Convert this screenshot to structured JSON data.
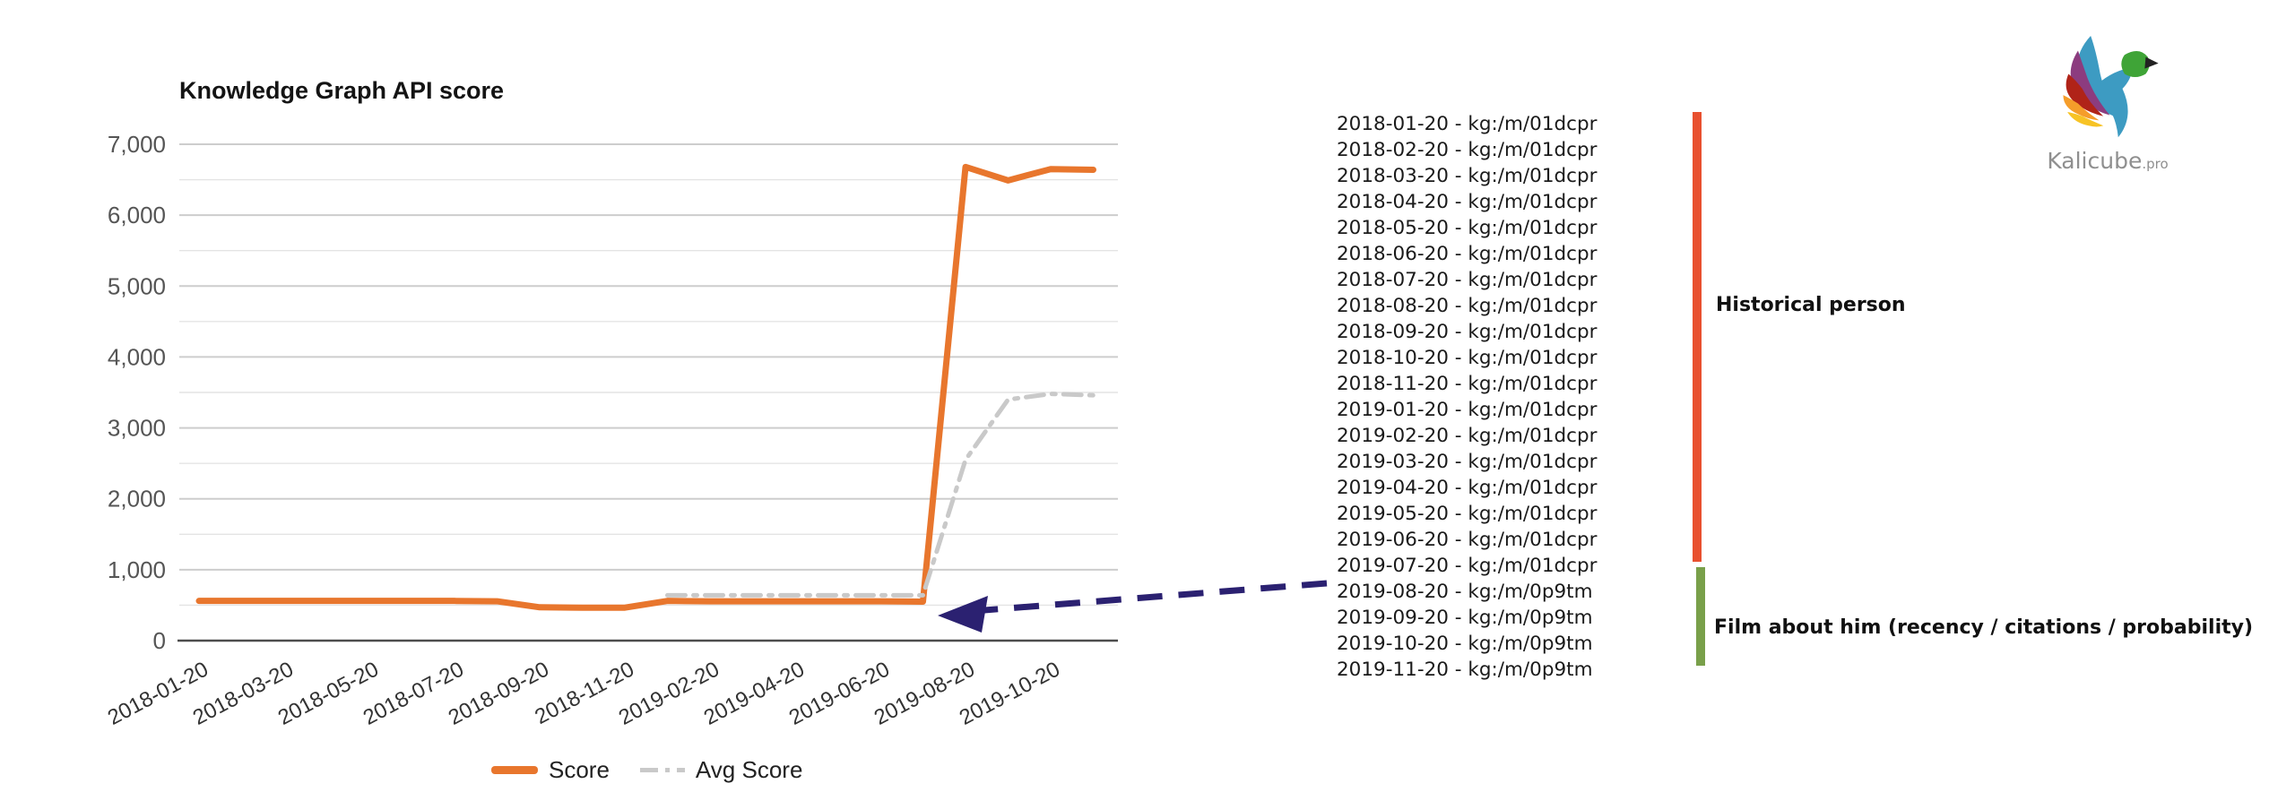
{
  "page": {
    "background": "#ffffff"
  },
  "logo": {
    "name": "Kalicube",
    "tld": ".pro"
  },
  "chart_data": {
    "type": "line",
    "title": "Knowledge Graph API score",
    "x": [
      "2018-01-20",
      "2018-02-20",
      "2018-03-20",
      "2018-04-20",
      "2018-05-20",
      "2018-06-20",
      "2018-07-20",
      "2018-08-20",
      "2018-09-20",
      "2018-10-20",
      "2018-11-20",
      "2019-01-20",
      "2019-02-20",
      "2019-03-20",
      "2019-04-20",
      "2019-05-20",
      "2019-06-20",
      "2019-07-20",
      "2019-08-20",
      "2019-09-20",
      "2019-10-20",
      "2019-11-20"
    ],
    "x_tick_labels": [
      "2018-01-20",
      "2018-03-20",
      "2018-05-20",
      "2018-07-20",
      "2018-09-20",
      "2018-11-20",
      "2019-02-20",
      "2019-04-20",
      "2019-06-20",
      "2019-08-20",
      "2019-10-20"
    ],
    "series": [
      {
        "name": "Score",
        "color": "#E8762D",
        "style": "solid",
        "values": [
          560,
          560,
          560,
          560,
          560,
          560,
          560,
          555,
          470,
          465,
          465,
          560,
          555,
          555,
          555,
          555,
          555,
          550,
          6680,
          6490,
          6650,
          6640
        ]
      },
      {
        "name": "Avg Score",
        "color": "#C9C9C9",
        "style": "dash-dot",
        "values": [
          null,
          null,
          null,
          null,
          null,
          null,
          null,
          null,
          null,
          null,
          null,
          640,
          640,
          640,
          640,
          640,
          640,
          640,
          2550,
          3400,
          3480,
          3460
        ]
      }
    ],
    "ylim": [
      0,
      7000
    ],
    "y_tick_step": 1000,
    "grid": "horizontal every 500",
    "legend_position": "bottom-center",
    "axis_color": "#4d4d4d",
    "grid_major_color": "#cdcdcd",
    "grid_minor_color": "#e4e4e4",
    "tick_label_color": "#555555"
  },
  "annotations": {
    "timeline": [
      "2018-01-20 - kg:/m/01dcpr",
      "2018-02-20 - kg:/m/01dcpr",
      "2018-03-20 - kg:/m/01dcpr",
      "2018-04-20 - kg:/m/01dcpr",
      "2018-05-20 - kg:/m/01dcpr",
      "2018-06-20 - kg:/m/01dcpr",
      "2018-07-20 - kg:/m/01dcpr",
      "2018-08-20 - kg:/m/01dcpr",
      "2018-09-20 - kg:/m/01dcpr",
      "2018-10-20 - kg:/m/01dcpr",
      "2018-11-20 - kg:/m/01dcpr",
      "2019-01-20 - kg:/m/01dcpr",
      "2019-02-20 - kg:/m/01dcpr",
      "2019-03-20 - kg:/m/01dcpr",
      "2019-04-20 - kg:/m/01dcpr",
      "2019-05-20 - kg:/m/01dcpr",
      "2019-06-20 - kg:/m/01dcpr",
      "2019-07-20 - kg:/m/01dcpr",
      "2019-08-20 - kg:/m/0p9tm",
      "2019-09-20 - kg:/m/0p9tm",
      "2019-10-20 - kg:/m/0p9tm",
      "2019-11-20 - kg:/m/0p9tm"
    ],
    "groups": [
      {
        "label": "Historical person",
        "color": "#E8502F"
      },
      {
        "label": "Film about him (recency / citations / probability)",
        "color": "#79A04A"
      }
    ],
    "arrow_color": "#2B2171"
  }
}
